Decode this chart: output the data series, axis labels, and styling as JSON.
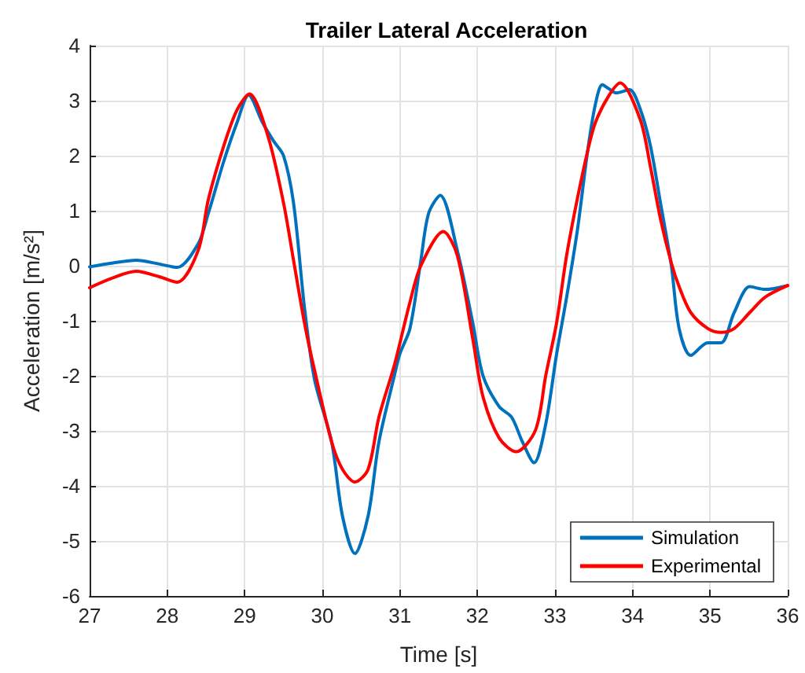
{
  "chart_data": {
    "type": "line",
    "title": "Trailer Lateral Acceleration",
    "xlabel": "Time [s]",
    "ylabel": "Acceleration [m/s²]",
    "xlim": [
      27,
      36
    ],
    "xticks": [
      27,
      28,
      29,
      30,
      31,
      32,
      33,
      34,
      35,
      36
    ],
    "ylim": [
      -6,
      4
    ],
    "yticks": [
      -6,
      -5,
      -4,
      -3,
      -2,
      -1,
      0,
      1,
      2,
      3,
      4
    ],
    "grid": true,
    "legend": "bottom right",
    "marker": "none",
    "line_style": "solid",
    "series": [
      {
        "name": "Simulation",
        "color": "#0072bd",
        "x": [
          27,
          27.3,
          27.6,
          27.9,
          28.13,
          28.4,
          28.53,
          28.73,
          28.9,
          29.05,
          29.23,
          29.37,
          29.5,
          29.63,
          29.77,
          29.9,
          30.12,
          30.26,
          30.42,
          30.59,
          30.73,
          30.93,
          31,
          31.13,
          31.27,
          31.37,
          31.52,
          31.74,
          31.94,
          32.07,
          32.28,
          32.44,
          32.58,
          32.73,
          32.88,
          33.02,
          33.15,
          33.29,
          33.42,
          33.52,
          33.61,
          33.69,
          33.79,
          33.96,
          34.1,
          34.23,
          34.36,
          34.5,
          34.6,
          34.75,
          34.97,
          35.14,
          35.31,
          35.51,
          35.71,
          36
        ],
        "values": [
          -0.02,
          0.05,
          0.1,
          0.03,
          -0.03,
          0.4,
          0.95,
          1.9,
          2.6,
          3.1,
          2.6,
          2.27,
          2,
          1.13,
          -0.76,
          -2.07,
          -3.2,
          -4.55,
          -5.23,
          -4.55,
          -3.2,
          -1.99,
          -1.6,
          -1.14,
          0.09,
          0.95,
          1.28,
          0.28,
          -1.04,
          -1.99,
          -2.56,
          -2.75,
          -3.2,
          -3.58,
          -2.88,
          -1.61,
          -0.57,
          0.66,
          2.08,
          2.93,
          3.29,
          3.22,
          3.14,
          3.2,
          2.84,
          2.18,
          1.14,
          0,
          -1.14,
          -1.63,
          -1.4,
          -1.4,
          -0.85,
          -0.38,
          -0.43,
          -0.36
        ]
      },
      {
        "name": "Experimental",
        "color": "#ff0000",
        "x": [
          27,
          27.3,
          27.6,
          27.9,
          28.13,
          28.4,
          28.53,
          28.73,
          28.9,
          29.06,
          29.3,
          29.5,
          29.63,
          29.77,
          29.9,
          30.12,
          30.26,
          30.42,
          30.59,
          30.73,
          30.93,
          31.13,
          31.27,
          31.56,
          31.74,
          31.94,
          32.07,
          32.28,
          32.5,
          32.75,
          32.88,
          33.02,
          33.15,
          33.29,
          33.42,
          33.52,
          33.69,
          33.84,
          34.1,
          34.23,
          34.36,
          34.5,
          34.6,
          34.75,
          34.97,
          35.14,
          35.31,
          35.51,
          35.71,
          36
        ],
        "values": [
          -0.4,
          -0.22,
          -0.1,
          -0.2,
          -0.3,
          0.28,
          1.2,
          2.18,
          2.83,
          3.12,
          2.35,
          1.14,
          0.09,
          -1.04,
          -1.9,
          -3.2,
          -3.7,
          -3.93,
          -3.7,
          -2.75,
          -1.8,
          -0.66,
          0,
          0.62,
          0.19,
          -1.33,
          -2.37,
          -3.13,
          -3.38,
          -2.98,
          -2.0,
          -1.04,
          0.19,
          1.23,
          2.08,
          2.6,
          3.08,
          3.32,
          2.65,
          1.8,
          0.85,
          0.05,
          -0.38,
          -0.85,
          -1.14,
          -1.21,
          -1.14,
          -0.85,
          -0.57,
          -0.36
        ]
      }
    ]
  }
}
